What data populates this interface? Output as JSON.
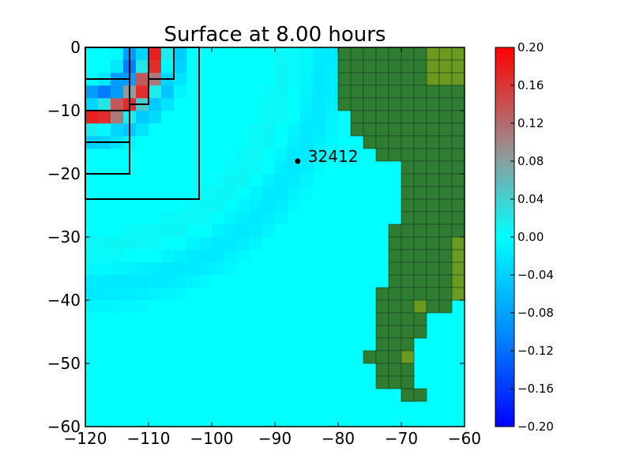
{
  "chart_data": {
    "type": "heatmap",
    "title": "Surface at 8.00 hours",
    "xlabel": "",
    "ylabel": "",
    "xlim": [
      -120,
      -60
    ],
    "ylim": [
      -60,
      0
    ],
    "x_ticks": [
      -120,
      -110,
      -100,
      -90,
      -80,
      -70,
      -60
    ],
    "x_tick_labels": [
      "−120",
      "−110",
      "−100",
      "−90",
      "−80",
      "−70",
      "−60"
    ],
    "y_ticks": [
      0,
      -10,
      -20,
      -30,
      -40,
      -50,
      -60
    ],
    "y_tick_labels": [
      "0",
      "−10",
      "−20",
      "−30",
      "−40",
      "−50",
      "−60"
    ],
    "colorbar": {
      "range": [
        -0.2,
        0.2
      ],
      "ticks": [
        0.2,
        0.16,
        0.12,
        0.08,
        0.04,
        0.0,
        -0.04,
        -0.08,
        -0.12,
        -0.16,
        -0.2
      ],
      "tick_labels": [
        "0.20",
        "0.16",
        "0.12",
        "0.08",
        "0.04",
        "0.00",
        "−0.04",
        "−0.08",
        "−0.12",
        "−0.16",
        "−0.20"
      ]
    },
    "gauge": {
      "label": "32412",
      "x": -86.4,
      "y": -18.0
    },
    "refinement_patches": [
      {
        "x": [
          -120,
          -102
        ],
        "y": [
          -24,
          0
        ]
      },
      {
        "x": [
          -120,
          -113
        ],
        "y": [
          -20,
          0
        ]
      },
      {
        "x": [
          -113,
          -110
        ],
        "y": [
          -9,
          0
        ]
      },
      {
        "x": [
          -110,
          -106
        ],
        "y": [
          -5,
          0
        ]
      }
    ],
    "land_mask": "eastern coastline from -80 to -60 longitude, 2-degree cells",
    "grid": false
  },
  "colors": {
    "background": "#00ffff",
    "land": "#2e7d32",
    "highland": "#6a9a1f",
    "cell_border": "#000000"
  }
}
